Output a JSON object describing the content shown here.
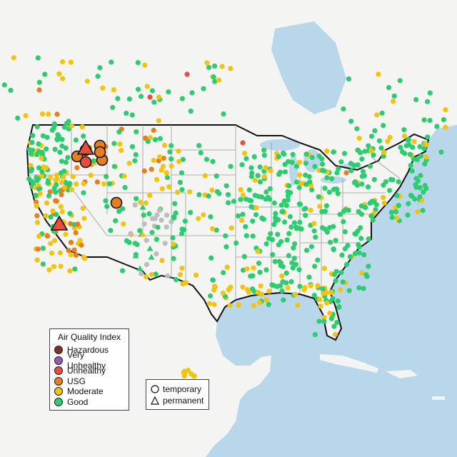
{
  "legend": {
    "title": "Air Quality Index",
    "items": [
      {
        "label": "Hazardous",
        "color": "#7e3328"
      },
      {
        "label": "Very Unhealthy",
        "color": "#9b59b6"
      },
      {
        "label": "Unhealthy",
        "color": "#e74c3c"
      },
      {
        "label": "USG",
        "color": "#e67e22"
      },
      {
        "label": "Moderate",
        "color": "#f1c40f"
      },
      {
        "label": "Good",
        "color": "#2ecc71"
      }
    ]
  },
  "shape_legend": {
    "items": [
      {
        "label": "temporary",
        "shape": "circle"
      },
      {
        "label": "permanent",
        "shape": "triangle"
      }
    ]
  },
  "colors": {
    "land": "#f4f4f2",
    "water": "#b9d7ea",
    "no_data": "#bdbdbd",
    "state_line": "#9a9a9a",
    "national_border": "#111111"
  }
}
